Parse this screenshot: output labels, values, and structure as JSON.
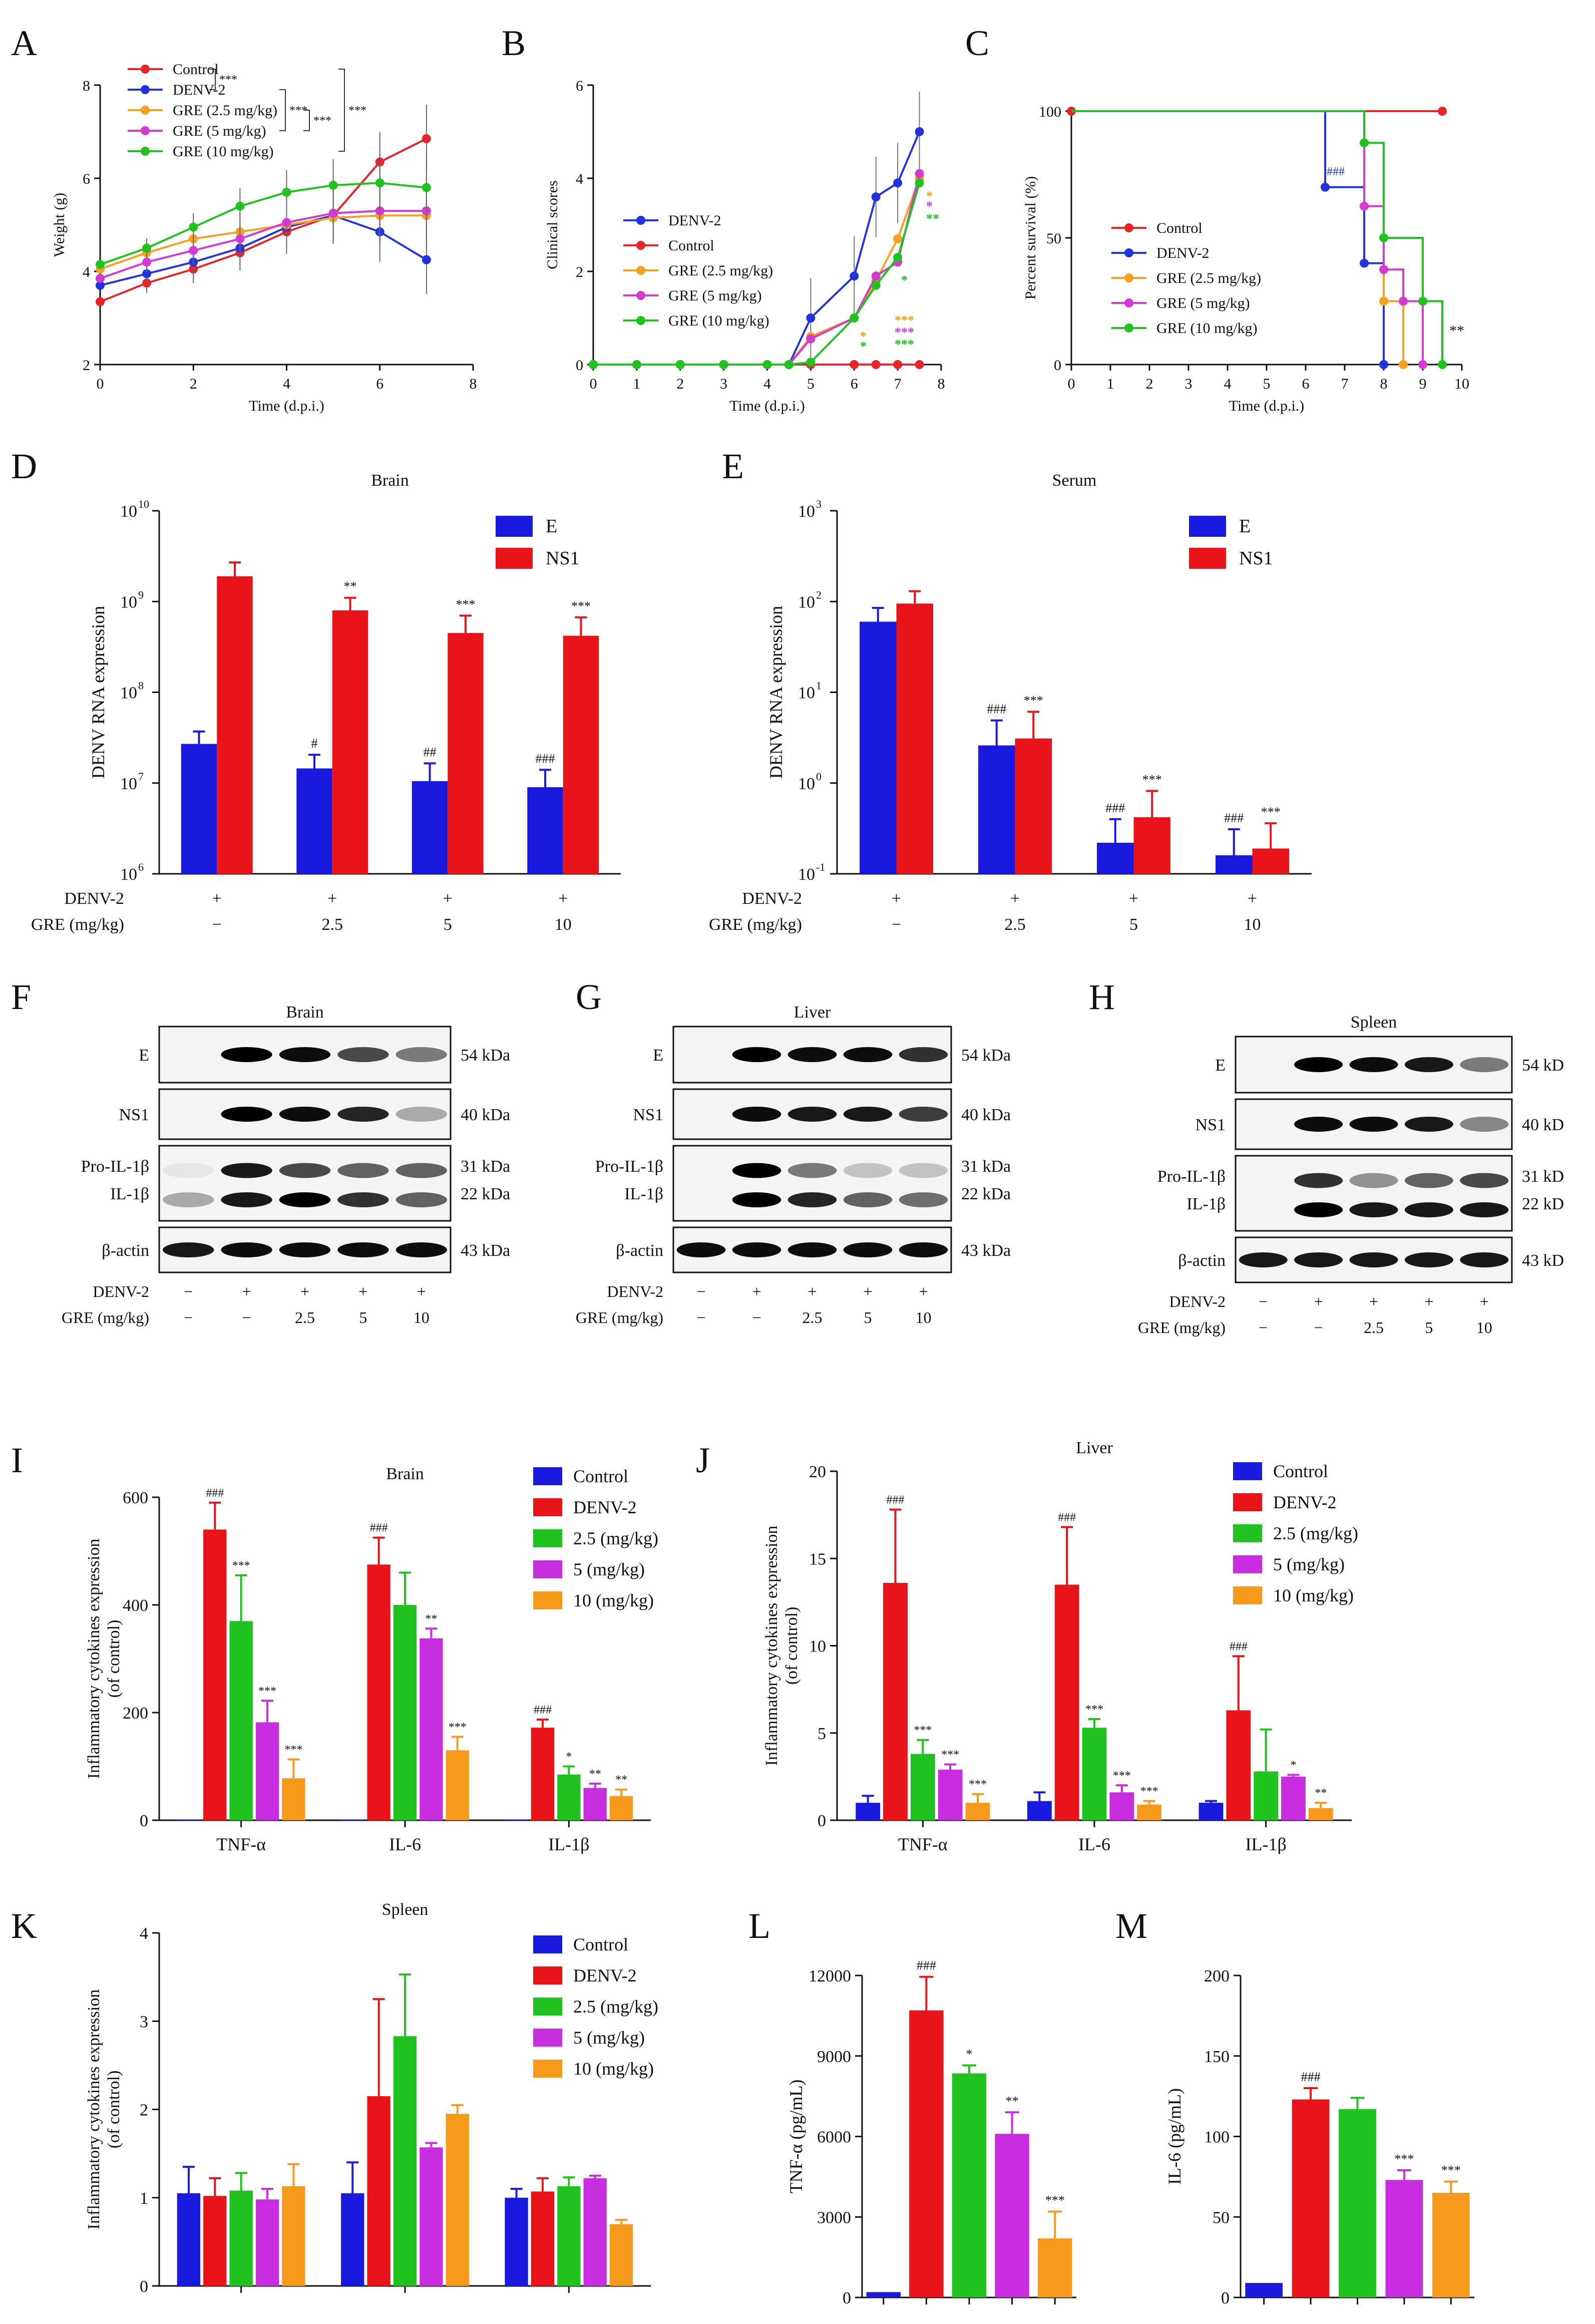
{
  "figure": "Multi-panel figure: effects of GRE on DENV-2 infected mice",
  "colors": {
    "Control": "#e8242a",
    "DENV-2": "#2233dd",
    "GRE (2.5 mg/kg)": "#f5a020",
    "GRE (5 mg/kg)": "#d23ad2",
    "GRE (10 mg/kg)": "#1fc21f",
    "bar_E": "#1a1adf",
    "bar_NS1": "#e8141a",
    "bar_Control": "#1a1adf",
    "bar_DENV-2": "#e8141a",
    "bar_2.5": "#1fc21f",
    "bar_5": "#c82ee0",
    "bar_10": "#f79a1c"
  },
  "chart_data": [
    {
      "id": "A",
      "type": "line",
      "xlabel": "Time (d.p.i.)",
      "ylabel": "Weight (g)",
      "xlim": [
        0,
        8
      ],
      "ylim": [
        2,
        8
      ],
      "xticks": [
        "0",
        "2",
        "4",
        "6",
        "8"
      ],
      "yticks": [
        "2",
        "4",
        "6",
        "8"
      ],
      "x": [
        0,
        1,
        2,
        3,
        4,
        5,
        6,
        7
      ],
      "series": [
        {
          "name": "Control",
          "values": [
            3.35,
            3.75,
            4.05,
            4.4,
            4.85,
            5.2,
            6.35,
            6.85
          ]
        },
        {
          "name": "DENV-2",
          "values": [
            3.7,
            3.95,
            4.2,
            4.5,
            4.95,
            5.2,
            4.85,
            4.25
          ]
        },
        {
          "name": "GRE (2.5 mg/kg)",
          "values": [
            4.05,
            4.4,
            4.7,
            4.85,
            5.0,
            5.15,
            5.2,
            5.2
          ]
        },
        {
          "name": "GRE (5 mg/kg)",
          "values": [
            3.85,
            4.2,
            4.45,
            4.7,
            5.05,
            5.25,
            5.3,
            5.3
          ]
        },
        {
          "name": "GRE (10 mg/kg)",
          "values": [
            4.15,
            4.5,
            4.95,
            5.4,
            5.7,
            5.85,
            5.9,
            5.8
          ]
        }
      ],
      "significance": [
        "***",
        "***",
        "***",
        "***"
      ]
    },
    {
      "id": "B",
      "type": "line",
      "xlabel": "Time (d.p.i.)",
      "ylabel": "Clinical scores",
      "xlim": [
        0,
        8
      ],
      "ylim": [
        0,
        6
      ],
      "xticks": [
        "0",
        "1",
        "2",
        "3",
        "4",
        "5",
        "6",
        "7",
        "8"
      ],
      "yticks": [
        "0",
        "2",
        "4",
        "6"
      ],
      "x": [
        0,
        1,
        2,
        3,
        4,
        4.5,
        5,
        6,
        6.5,
        7,
        7.5
      ],
      "series": [
        {
          "name": "DENV-2",
          "values": [
            0,
            0,
            0,
            0,
            0,
            0,
            1.0,
            1.9,
            3.6,
            3.9,
            5.0
          ]
        },
        {
          "name": "Control",
          "values": [
            0,
            0,
            0,
            0,
            0,
            0,
            0,
            0,
            0,
            0,
            0
          ]
        },
        {
          "name": "GRE (2.5 mg/kg)",
          "values": [
            0,
            0,
            0,
            0,
            0,
            0,
            0.6,
            1.0,
            1.8,
            2.7,
            4.0
          ]
        },
        {
          "name": "GRE (5 mg/kg)",
          "values": [
            0,
            0,
            0,
            0,
            0,
            0,
            0.55,
            1.0,
            1.9,
            2.2,
            4.1
          ]
        },
        {
          "name": "GRE (10 mg/kg)",
          "values": [
            0,
            0,
            0,
            0,
            0,
            0,
            0.05,
            1.0,
            1.7,
            2.3,
            3.9
          ]
        }
      ]
    },
    {
      "id": "C",
      "type": "line",
      "xlabel": "Time (d.p.i.)",
      "ylabel": "Percent survival (%)",
      "xlim": [
        0,
        10
      ],
      "ylim": [
        0,
        100
      ],
      "xticks": [
        "0",
        "1",
        "2",
        "3",
        "4",
        "5",
        "6",
        "7",
        "8",
        "9",
        "10"
      ],
      "yticks": [
        "0",
        "50",
        "100"
      ],
      "series": [
        {
          "name": "Control",
          "x": [
            0,
            9.5
          ],
          "values": [
            100,
            100
          ]
        },
        {
          "name": "DENV-2",
          "x": [
            0,
            6.5,
            7.5,
            8
          ],
          "values": [
            100,
            70,
            40,
            0
          ]
        },
        {
          "name": "GRE (2.5 mg/kg)",
          "x": [
            0,
            7.5,
            8,
            8.5
          ],
          "values": [
            100,
            62.5,
            25,
            0
          ]
        },
        {
          "name": "GRE (5 mg/kg)",
          "x": [
            0,
            7.5,
            8,
            8.5,
            9
          ],
          "values": [
            100,
            62.5,
            37.5,
            25,
            0
          ]
        },
        {
          "name": "GRE (10 mg/kg)",
          "x": [
            0,
            7.5,
            8,
            9,
            9.5
          ],
          "values": [
            100,
            87.5,
            50,
            25,
            0
          ]
        }
      ],
      "significance": [
        "###",
        "**"
      ]
    },
    {
      "id": "D",
      "type": "bar",
      "title": "Brain",
      "scale": "log",
      "ylabel": "DENV RNA expression",
      "yticks": [
        "10",
        "10",
        "10",
        "10",
        "10"
      ],
      "ytick_exponents": [
        "6",
        "7",
        "8",
        "9",
        "10"
      ],
      "categories": [
        "DENV-2 +, GRE −",
        "2.5",
        "5",
        "10"
      ],
      "rowlabels": [
        "DENV-2",
        "GRE (mg/kg)"
      ],
      "row1": [
        "+",
        "+",
        "+",
        "+"
      ],
      "row2": [
        "−",
        "2.5",
        "5",
        "10"
      ],
      "series": [
        {
          "name": "E",
          "values": [
            27000000,
            14500000,
            10500000,
            9000000
          ],
          "err": [
            10000000,
            6000000,
            6000000,
            5000000
          ],
          "sig": [
            "",
            "#",
            "##",
            "###"
          ]
        },
        {
          "name": "NS1",
          "values": [
            1900000000,
            800000000,
            450000000,
            420000000
          ],
          "err": [
            800000000,
            300000000,
            250000000,
            250000000
          ],
          "sig": [
            "",
            "**",
            "***",
            "***"
          ]
        }
      ]
    },
    {
      "id": "E",
      "type": "bar",
      "title": "Serum",
      "scale": "log",
      "ylabel": "DENV RNA expression",
      "yticks": [
        "10",
        "10",
        "10",
        "10",
        "10"
      ],
      "ytick_exponents": [
        "-1",
        "0",
        "1",
        "2",
        "3"
      ],
      "rowlabels": [
        "DENV-2",
        "GRE (mg/kg)"
      ],
      "row1": [
        "+",
        "+",
        "+",
        "+"
      ],
      "row2": [
        "−",
        "2.5",
        "5",
        "10"
      ],
      "series": [
        {
          "name": "E",
          "values": [
            60,
            2.6,
            0.22,
            0.16
          ],
          "err": [
            25,
            2.3,
            0.18,
            0.15
          ],
          "sig": [
            "",
            "###",
            "###",
            "###"
          ]
        },
        {
          "name": "NS1",
          "values": [
            95,
            3.1,
            0.42,
            0.19
          ],
          "err": [
            35,
            3.0,
            0.4,
            0.17
          ],
          "sig": [
            "",
            "***",
            "***",
            "***"
          ]
        }
      ]
    },
    {
      "id": "I",
      "type": "bar",
      "title": "Brain",
      "ylabel": "Inflammatory cytokines expression (of control)",
      "ylim": [
        0,
        600
      ],
      "yticks": [
        "0",
        "200",
        "400",
        "600"
      ],
      "categories": [
        "TNF-α",
        "IL-6",
        "IL-1β"
      ],
      "series": [
        {
          "name": "Control",
          "values": [
            1,
            1,
            1
          ],
          "err": [
            0,
            0,
            0
          ],
          "sig": [
            "",
            "",
            ""
          ]
        },
        {
          "name": "DENV-2",
          "values": [
            540,
            475,
            172
          ],
          "err": [
            50,
            50,
            15
          ],
          "sig": [
            "###",
            "###",
            "###"
          ]
        },
        {
          "name": "2.5 (mg/kg)",
          "values": [
            370,
            400,
            85
          ],
          "err": [
            85,
            60,
            15
          ],
          "sig": [
            "***",
            "",
            "*"
          ]
        },
        {
          "name": "5 (mg/kg)",
          "values": [
            182,
            338,
            60
          ],
          "err": [
            40,
            18,
            8
          ],
          "sig": [
            "***",
            "**",
            "**"
          ]
        },
        {
          "name": "10 (mg/kg)",
          "values": [
            78,
            130,
            45
          ],
          "err": [
            35,
            25,
            12
          ],
          "sig": [
            "***",
            "***",
            "**"
          ]
        }
      ]
    },
    {
      "id": "J",
      "type": "bar",
      "title": "Liver",
      "ylabel": "Inflammatory cytokines expression (of control)",
      "ylim": [
        0,
        20
      ],
      "yticks": [
        "0",
        "5",
        "10",
        "15",
        "20"
      ],
      "categories": [
        "TNF-α",
        "IL-6",
        "IL-1β"
      ],
      "series": [
        {
          "name": "Control",
          "values": [
            1.0,
            1.1,
            1.0
          ],
          "err": [
            0.4,
            0.5,
            0.1
          ],
          "sig": [
            "",
            "",
            ""
          ]
        },
        {
          "name": "DENV-2",
          "values": [
            13.6,
            13.5,
            6.3
          ],
          "err": [
            4.2,
            3.3,
            3.1
          ],
          "sig": [
            "###",
            "###",
            "###"
          ]
        },
        {
          "name": "2.5 (mg/kg)",
          "values": [
            3.8,
            5.3,
            2.8
          ],
          "err": [
            0.8,
            0.5,
            2.4
          ],
          "sig": [
            "***",
            "***",
            ""
          ]
        },
        {
          "name": "5 (mg/kg)",
          "values": [
            2.9,
            1.6,
            2.5
          ],
          "err": [
            0.3,
            0.4,
            0.1
          ],
          "sig": [
            "***",
            "***",
            "*"
          ]
        },
        {
          "name": "10 (mg/kg)",
          "values": [
            1.0,
            0.9,
            0.7
          ],
          "err": [
            0.5,
            0.2,
            0.3
          ],
          "sig": [
            "***",
            "***",
            "**"
          ]
        }
      ]
    },
    {
      "id": "K",
      "type": "bar",
      "title": "Spleen",
      "ylabel": "Inflammatory cytokines expression (of control)",
      "ylim": [
        0,
        4
      ],
      "yticks": [
        "0",
        "1",
        "2",
        "3",
        "4"
      ],
      "categories": [
        "",
        "",
        ""
      ],
      "series": [
        {
          "name": "Control",
          "values": [
            1.05,
            1.05,
            1.0
          ],
          "err": [
            0.3,
            0.35,
            0.1
          ],
          "sig": [
            "",
            "",
            ""
          ]
        },
        {
          "name": "DENV-2",
          "values": [
            1.02,
            2.15,
            1.07
          ],
          "err": [
            0.2,
            1.1,
            0.15
          ],
          "sig": [
            "",
            "",
            ""
          ]
        },
        {
          "name": "2.5 (mg/kg)",
          "values": [
            1.08,
            2.83,
            1.13
          ],
          "err": [
            0.2,
            0.7,
            0.1
          ],
          "sig": [
            "",
            "",
            ""
          ]
        },
        {
          "name": "5 (mg/kg)",
          "values": [
            0.98,
            1.57,
            1.22
          ],
          "err": [
            0.12,
            0.05,
            0.03
          ],
          "sig": [
            "",
            "",
            ""
          ]
        },
        {
          "name": "10 (mg/kg)",
          "values": [
            1.13,
            1.95,
            0.7
          ],
          "err": [
            0.25,
            0.1,
            0.05
          ],
          "sig": [
            "",
            "",
            ""
          ]
        }
      ]
    },
    {
      "id": "L",
      "type": "bar",
      "ylabel": "TNF-α (pg/mL)",
      "ylim": [
        0,
        12000
      ],
      "yticks": [
        "0",
        "3000",
        "6000",
        "9000",
        "12000"
      ],
      "values": [
        200,
        10700,
        8350,
        6100,
        2200
      ],
      "err": [
        0,
        1250,
        300,
        800,
        1000
      ],
      "sig": [
        "",
        "###",
        "*",
        "**",
        "***"
      ]
    },
    {
      "id": "M",
      "type": "bar",
      "ylabel": "IL-6 (pg/mL)",
      "ylim": [
        0,
        200
      ],
      "yticks": [
        "0",
        "50",
        "100",
        "150",
        "200"
      ],
      "values": [
        9,
        123,
        117,
        73,
        65
      ],
      "err": [
        0,
        7,
        7,
        6,
        7
      ],
      "sig": [
        "",
        "###",
        "",
        "***",
        "***"
      ]
    }
  ],
  "panel_letters": [
    "A",
    "B",
    "C",
    "D",
    "E",
    "F",
    "G",
    "H",
    "I",
    "J",
    "K",
    "L",
    "M"
  ],
  "legends": {
    "A": [
      "Control",
      "DENV-2",
      "GRE (2.5 mg/kg)",
      "GRE (5 mg/kg)",
      "GRE (10 mg/kg)"
    ],
    "B": [
      "DENV-2",
      "Control",
      "GRE (2.5 mg/kg)",
      "GRE (5 mg/kg)",
      "GRE (10 mg/kg)"
    ],
    "C": [
      "Control",
      "DENV-2",
      "GRE (2.5 mg/kg)",
      "GRE (5 mg/kg)",
      "GRE (10 mg/kg)"
    ],
    "DE": [
      "E",
      "NS1"
    ],
    "IJK": [
      "Control",
      "DENV-2",
      "2.5 (mg/kg)",
      "5 (mg/kg)",
      "10 (mg/kg)"
    ]
  },
  "blots": [
    {
      "id": "F",
      "title": "Brain",
      "rows": [
        "E",
        "NS1",
        "Pro-IL-1β",
        "IL-1β",
        "β-actin"
      ],
      "kda": [
        "54 kDa",
        "40 kDa",
        "31 kDa",
        "22 kDa",
        "43 kDa"
      ],
      "row1_label": "DENV-2",
      "row2_label": "GRE (mg/kg)",
      "row1": [
        "−",
        "+",
        "+",
        "+",
        "+"
      ],
      "row2": [
        "−",
        "−",
        "2.5",
        "5",
        "10"
      ]
    },
    {
      "id": "G",
      "title": "Liver",
      "rows": [
        "E",
        "NS1",
        "Pro-IL-1β",
        "IL-1β",
        "β-actin"
      ],
      "kda": [
        "54 kDa",
        "40 kDa",
        "31 kDa",
        "22 kDa",
        "43 kDa"
      ],
      "row1_label": "DENV-2",
      "row2_label": "GRE (mg/kg)",
      "row1": [
        "−",
        "+",
        "+",
        "+",
        "+"
      ],
      "row2": [
        "−",
        "−",
        "2.5",
        "5",
        "10"
      ]
    },
    {
      "id": "H",
      "title": "Spleen",
      "rows": [
        "E",
        "NS1",
        "Pro-IL-1β",
        "IL-1β",
        "β-actin"
      ],
      "kda": [
        "54 kD",
        "40 kD",
        "31 kD",
        "22 kD",
        "43 kD"
      ],
      "row1_label": "DENV-2",
      "row2_label": "GRE (mg/kg)",
      "row1": [
        "−",
        "+",
        "+",
        "+",
        "+"
      ],
      "row2": [
        "−",
        "−",
        "2.5",
        "5",
        "10"
      ]
    }
  ]
}
